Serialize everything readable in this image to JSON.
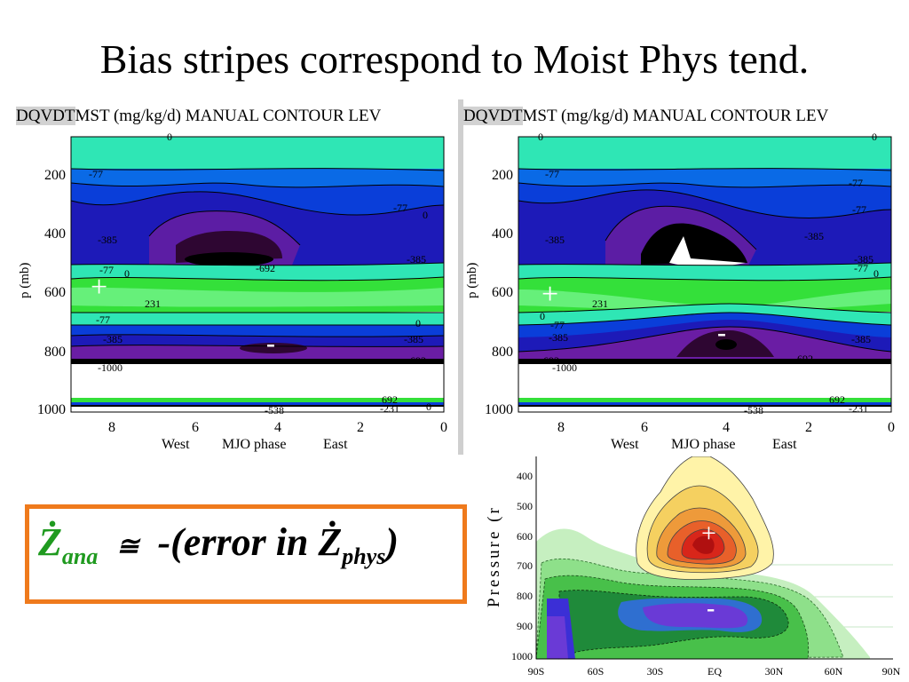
{
  "slide": {
    "title": "Bias stripes correspond to Moist Phys tend."
  },
  "panels": [
    {
      "header_gray": "DQVDT",
      "header_rest": "MST (mg/kg/d) MANUAL CONTOUR LEV",
      "ylabel": "p (mb)",
      "xlabel_west": "West",
      "xlabel_center": "MJO phase",
      "xlabel_east": "East",
      "yticks": [
        "200",
        "400",
        "600",
        "800",
        "1000"
      ],
      "xticks": [
        "8",
        "6",
        "4",
        "2",
        "0"
      ],
      "contour_labels": [
        "0",
        "-77",
        "-77",
        "0",
        "-385",
        "-692",
        "-385",
        "-77",
        "0",
        "231",
        "0",
        "-77",
        "-385",
        "-385",
        "-692",
        "-1000",
        "-538",
        "-231",
        "692",
        "0"
      ],
      "plus_marker": "+",
      "minus_marker": "-"
    },
    {
      "header_gray": "DQVDT",
      "header_rest": "MST (mg/kg/d) MANUAL CONTOUR LEV",
      "ylabel": "p (mb)",
      "xlabel_west": "West",
      "xlabel_center": "MJO phase",
      "xlabel_east": "East",
      "yticks": [
        "200",
        "400",
        "600",
        "800",
        "1000"
      ],
      "xticks": [
        "8",
        "6",
        "4",
        "2",
        "0"
      ],
      "contour_labels": [
        "0",
        "0",
        "-77",
        "-77",
        "-77",
        "-385",
        "-385",
        "-385",
        "-77",
        "0",
        "231",
        "0",
        "-77",
        "-385",
        "-385",
        "-692",
        "-692",
        "-1000",
        "-538",
        "692",
        "-231"
      ],
      "plus_marker": "+",
      "minus_marker": "-"
    }
  ],
  "bottom_chart": {
    "ylabel": "Pressure (r",
    "yticks": [
      "400",
      "500",
      "600",
      "700",
      "800",
      "900",
      "1000"
    ],
    "xticks": [
      "90S",
      "60S",
      "30S",
      "EQ",
      "30N",
      "60N",
      "90N"
    ],
    "plus_marker": "+",
    "minus_marker": "-"
  },
  "formula": {
    "lhs_symbol": "Ż",
    "lhs_sub": "ana",
    "approx": "≅",
    "rhs_prefix": "-(error in Ż",
    "rhs_sub": "phys",
    "rhs_suffix": ")",
    "lhs_color": "#1f9a1f",
    "box_color": "#ef7a1c"
  },
  "chart_data": [
    {
      "type": "heatmap",
      "title": "DQVDTMST (mg/kg/d) MANUAL CONTOUR LEV",
      "xlabel": "MJO phase",
      "ylabel": "p (mb)",
      "x_range": [
        9,
        0
      ],
      "y_range": [
        100,
        1030
      ],
      "x_ticks": [
        8,
        6,
        4,
        2,
        0
      ],
      "y_ticks": [
        200,
        400,
        600,
        800,
        1000
      ],
      "bands": [
        {
          "p_top": 100,
          "p_bottom": 200,
          "value": 0
        },
        {
          "p_top": 200,
          "p_bottom": 520,
          "value": -385
        },
        {
          "p_top": 520,
          "p_bottom": 560,
          "value": 0
        },
        {
          "p_top": 560,
          "p_bottom": 680,
          "value": 231
        },
        {
          "p_top": 680,
          "p_bottom": 720,
          "value": -77
        },
        {
          "p_top": 720,
          "p_bottom": 850,
          "value": -692
        },
        {
          "p_top": 850,
          "p_bottom": 990,
          "value": 0
        },
        {
          "p_top": 990,
          "p_bottom": 1030,
          "value": 231
        }
      ],
      "cores": [
        {
          "phase": 5,
          "p": 490,
          "value": -1000
        },
        {
          "phase": 4,
          "p": 790,
          "value": -1000
        }
      ]
    },
    {
      "type": "heatmap",
      "title": "DQVDTMST (mg/kg/d) MANUAL CONTOUR LEV",
      "xlabel": "MJO phase",
      "ylabel": "p (mb)",
      "x_range": [
        9,
        0
      ],
      "y_range": [
        100,
        1030
      ],
      "x_ticks": [
        8,
        6,
        4,
        2,
        0
      ],
      "y_ticks": [
        200,
        400,
        600,
        800,
        1000
      ],
      "bands": [
        {
          "p_top": 100,
          "p_bottom": 200,
          "value": 0
        },
        {
          "p_top": 200,
          "p_bottom": 520,
          "value": -385
        },
        {
          "p_top": 520,
          "p_bottom": 560,
          "value": 0
        },
        {
          "p_top": 560,
          "p_bottom": 680,
          "value": 231
        },
        {
          "p_top": 680,
          "p_bottom": 720,
          "value": -77
        },
        {
          "p_top": 720,
          "p_bottom": 850,
          "value": -692
        },
        {
          "p_top": 850,
          "p_bottom": 990,
          "value": 0
        },
        {
          "p_top": 990,
          "p_bottom": 1030,
          "value": 231
        }
      ],
      "cores": [
        {
          "phase": 4.5,
          "p": 470,
          "value": -1000
        },
        {
          "phase": 4,
          "p": 800,
          "value": -1000
        }
      ]
    },
    {
      "type": "heatmap",
      "xlabel": "",
      "ylabel": "Pressure (r",
      "x_range": [
        -90,
        90
      ],
      "y_range": [
        375,
        1000
      ],
      "x_ticks": [
        "90S",
        "60S",
        "30S",
        "EQ",
        "30N",
        "60N",
        "90N"
      ],
      "y_ticks": [
        400,
        500,
        600,
        700,
        800,
        900,
        1000
      ],
      "features": [
        {
          "kind": "positive",
          "lat": 0,
          "p": 590
        },
        {
          "kind": "negative",
          "lat": 0,
          "p": 840
        }
      ]
    }
  ]
}
